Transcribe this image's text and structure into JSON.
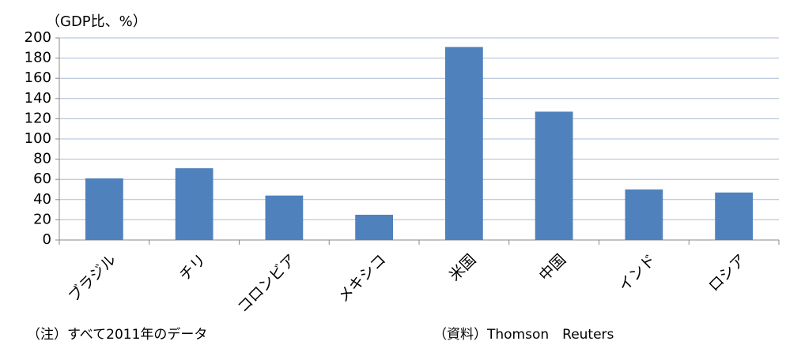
{
  "chart_data": {
    "type": "bar",
    "y_label": "（GDP比、%）",
    "categories": [
      "ブラジル",
      "チリ",
      "コロンビア",
      "メキシコ",
      "米国",
      "中国",
      "インド",
      "ロシア"
    ],
    "values": [
      61,
      71,
      44,
      25,
      191,
      127,
      50,
      47
    ],
    "color": "#4f81bd",
    "ylim": [
      0,
      200
    ],
    "yticks": [
      0,
      20,
      40,
      60,
      80,
      100,
      120,
      140,
      160,
      180,
      200
    ],
    "grid": true,
    "note": "（注）すべて2011年のデータ",
    "source": "（資料）Thomson　Reuters"
  }
}
